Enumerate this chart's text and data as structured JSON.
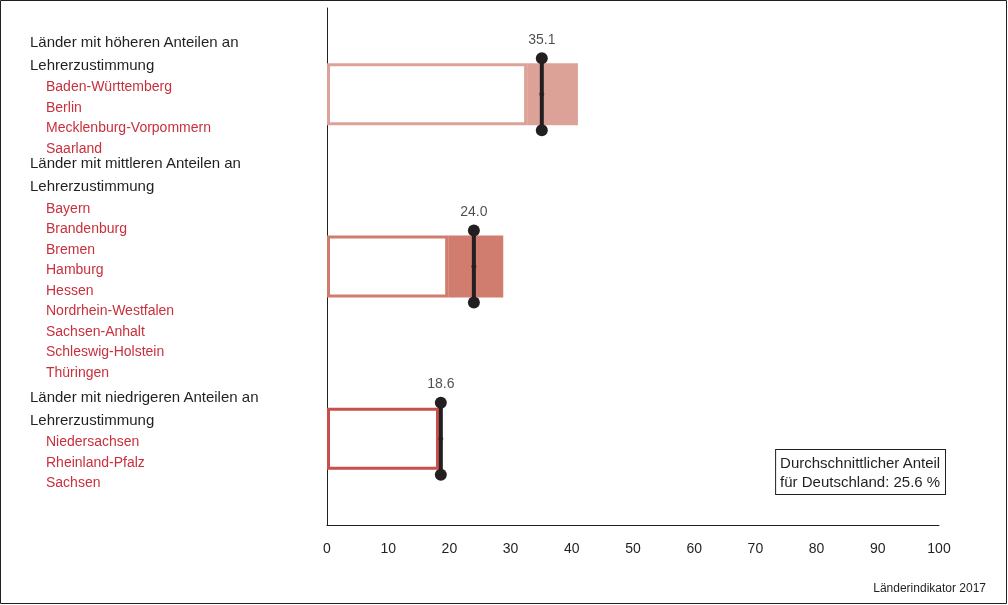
{
  "chart_data": {
    "type": "bar",
    "orientation": "horizontal",
    "stacked": true,
    "categories": [
      "Länder mit höheren Anteilen an Lehrerzustimmung\nBaden-Württemberg\nBerlin\nMecklenburg-Vorpommern\nSaarland",
      "Länder mit mittleren Anteilen an Lehrerzustimmung\nBayern\nBrandenburg\nBremen\nHamburg\nHessen\nNordrhein-Westfalen\nSachsen-Anhalt\nSchleswig-Holstein\nThüringen",
      "Länder mit niedrigeren Anteilen an Lehrerzustimmung\nNiedersachsen\nRheinland-Pfalz\nSachsen"
    ],
    "series": [
      {
        "colors": [
          "#dca297",
          "#d07c6f",
          "#c8504a"
        ],
        "values": [
          32.7,
          19.8,
          18.3
        ]
      },
      {
        "colors": [
          "#dca297",
          "#d07c6f",
          "#e3aba7"
        ],
        "values": [
          8.3,
          9.0,
          null
        ]
      },
      {
        "type": "scatter",
        "color": "#231f20",
        "marker": "circle",
        "values": [
          35.1,
          24.0,
          18.6
        ],
        "value_labels": [
          "35.1",
          "24.0",
          "18.6"
        ]
      }
    ],
    "xlim": [
      0,
      100
    ],
    "xticks": [
      0,
      10,
      20,
      30,
      40,
      50,
      60,
      70,
      80,
      90,
      100
    ],
    "grid": false,
    "annotations": [
      "Durchschnittlicher Anteil für Deutschland: 25.6 %",
      "Länderindikator 2017"
    ]
  }
}
